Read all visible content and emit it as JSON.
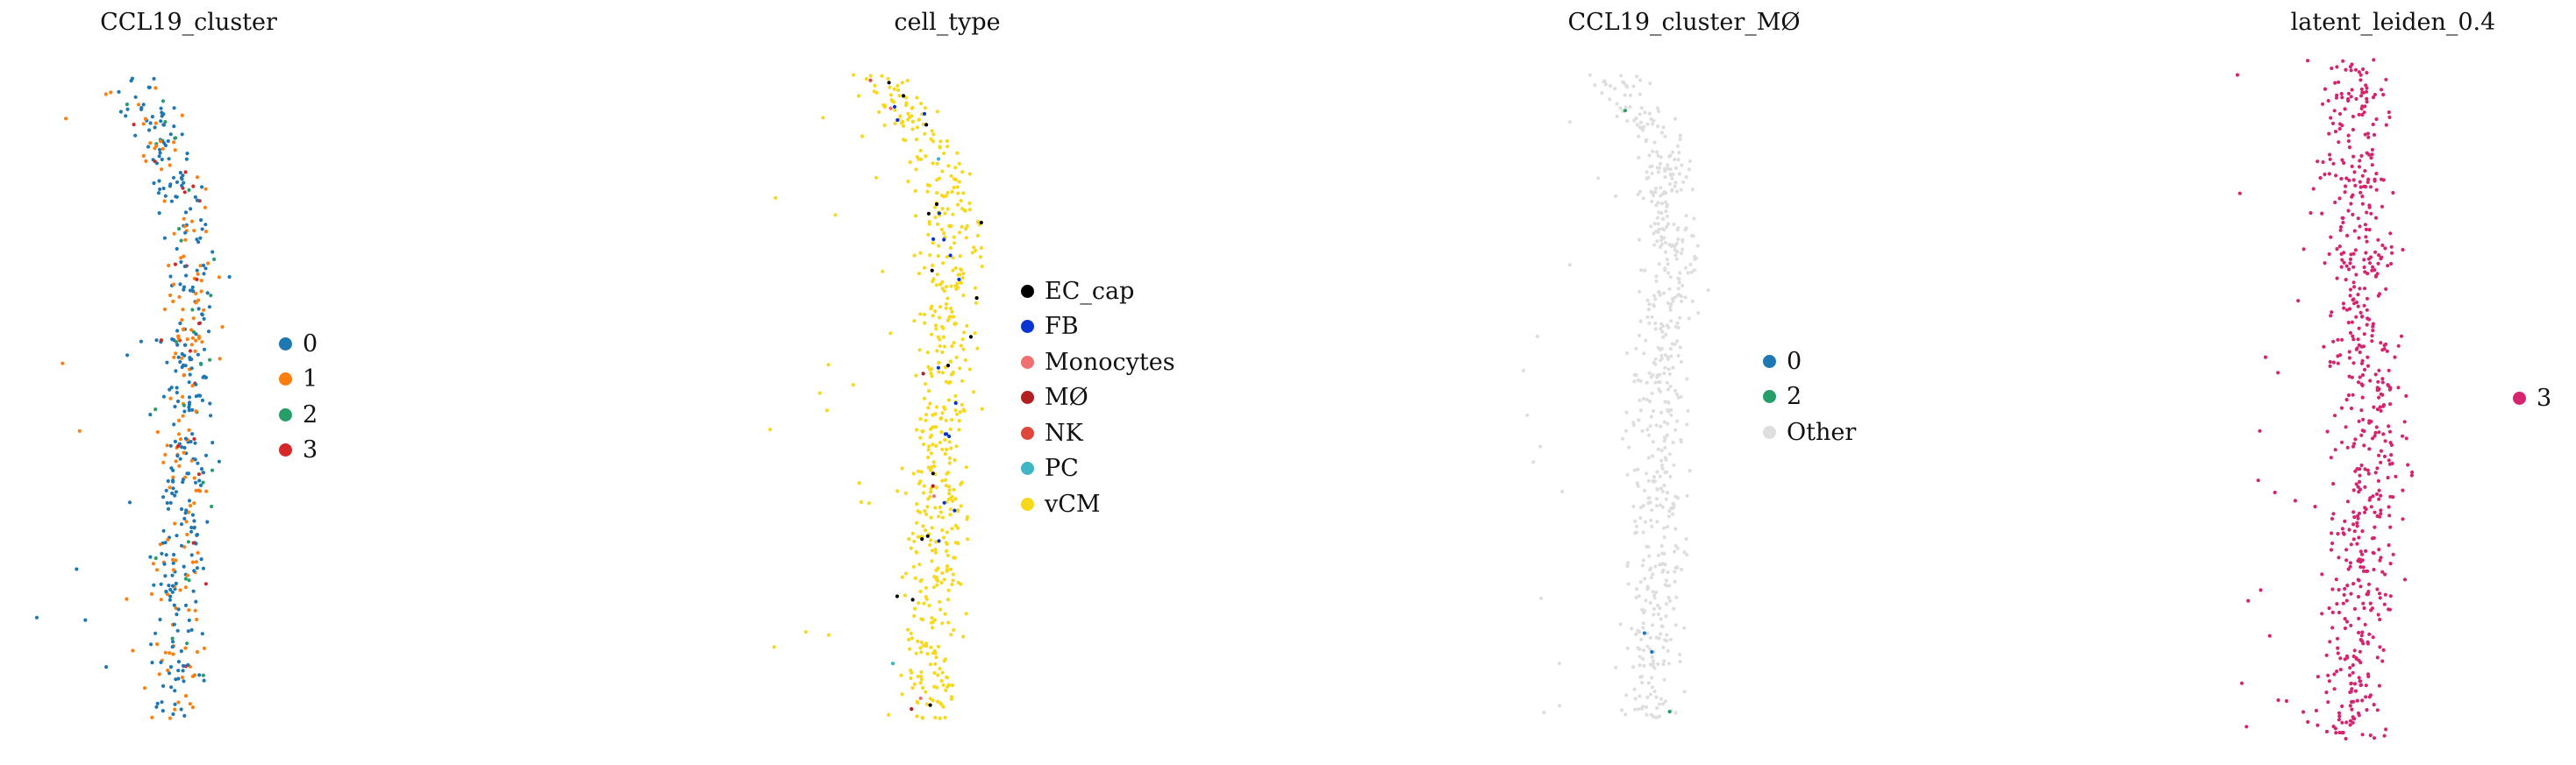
{
  "chart_data": [
    {
      "type": "scatter",
      "title": "CCL19_cluster",
      "grid": false,
      "axes_visible": false,
      "legend_position": "right",
      "categories": [
        "0",
        "1",
        "2",
        "3"
      ],
      "colors": {
        "0": "#1f77b4",
        "1": "#ff7f0e",
        "2": "#279e68",
        "3": "#d62728"
      },
      "n_points_approx": 520,
      "category_weights": [
        0.62,
        0.3,
        0.05,
        0.03
      ]
    },
    {
      "type": "scatter",
      "title": "cell_type",
      "grid": false,
      "axes_visible": false,
      "legend_position": "right",
      "categories": [
        "EC_cap",
        "FB",
        "Monocytes",
        "MØ",
        "NK",
        "PC",
        "vCM"
      ],
      "colors": {
        "EC_cap": "#000000",
        "FB": "#0a34d1",
        "Monocytes": "#f07070",
        "MØ": "#b31e1e",
        "NK": "#e0473a",
        "PC": "#3fb6c6",
        "vCM": "#f7d81c"
      },
      "n_points_approx": 600,
      "category_weights": [
        0.035,
        0.02,
        0.004,
        0.003,
        0.003,
        0.005,
        0.93
      ]
    },
    {
      "type": "scatter",
      "title": "CCL19_cluster_MØ",
      "grid": false,
      "axes_visible": false,
      "legend_position": "right",
      "categories": [
        "0",
        "2",
        "Other"
      ],
      "colors": {
        "0": "#1f77b4",
        "2": "#279e68",
        "Other": "#dedede"
      },
      "n_points_approx": 600,
      "category_weights": [
        0.003,
        0.002,
        0.995
      ]
    },
    {
      "type": "scatter",
      "title": "latent_leiden_0.4",
      "grid": false,
      "axes_visible": false,
      "legend_position": "right",
      "categories": [
        "3"
      ],
      "colors": {
        "3": "#d6246e"
      },
      "n_points_approx": 640,
      "category_weights": [
        1.0
      ]
    }
  ]
}
